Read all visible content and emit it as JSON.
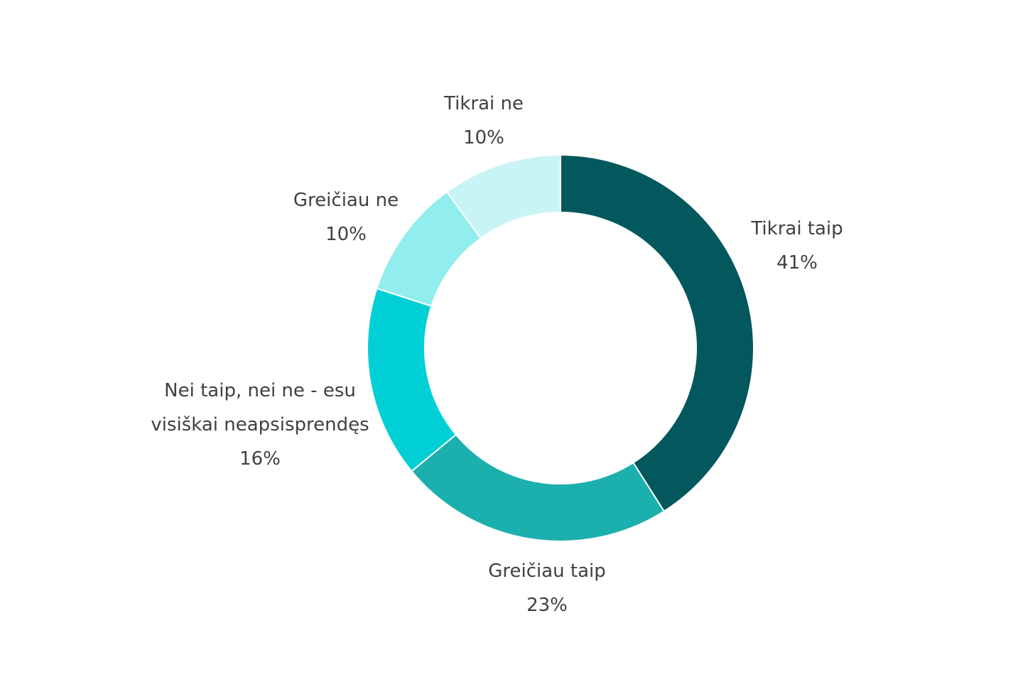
{
  "chart_data": {
    "type": "pie",
    "variant": "donut",
    "slices": [
      {
        "label_lines": [
          "Tikrai taip"
        ],
        "value": 41,
        "value_label": "41%",
        "color": "#02585C"
      },
      {
        "label_lines": [
          "Greičiau taip"
        ],
        "value": 23,
        "value_label": "23%",
        "color": "#1BAFAE"
      },
      {
        "label_lines": [
          "Nei taip, nei ne - esu",
          "visiškai neapsisprendęs"
        ],
        "value": 16,
        "value_label": "16%",
        "color": "#00D0D5"
      },
      {
        "label_lines": [
          "Greičiau ne"
        ],
        "value": 10,
        "value_label": "10%",
        "color": "#92EDEE"
      },
      {
        "label_lines": [
          "Tikrai ne"
        ],
        "value": 10,
        "value_label": "10%",
        "color": "#C9F4F5"
      }
    ],
    "start_angle": "12 o'clock",
    "direction": "clockwise",
    "legend": "none"
  }
}
